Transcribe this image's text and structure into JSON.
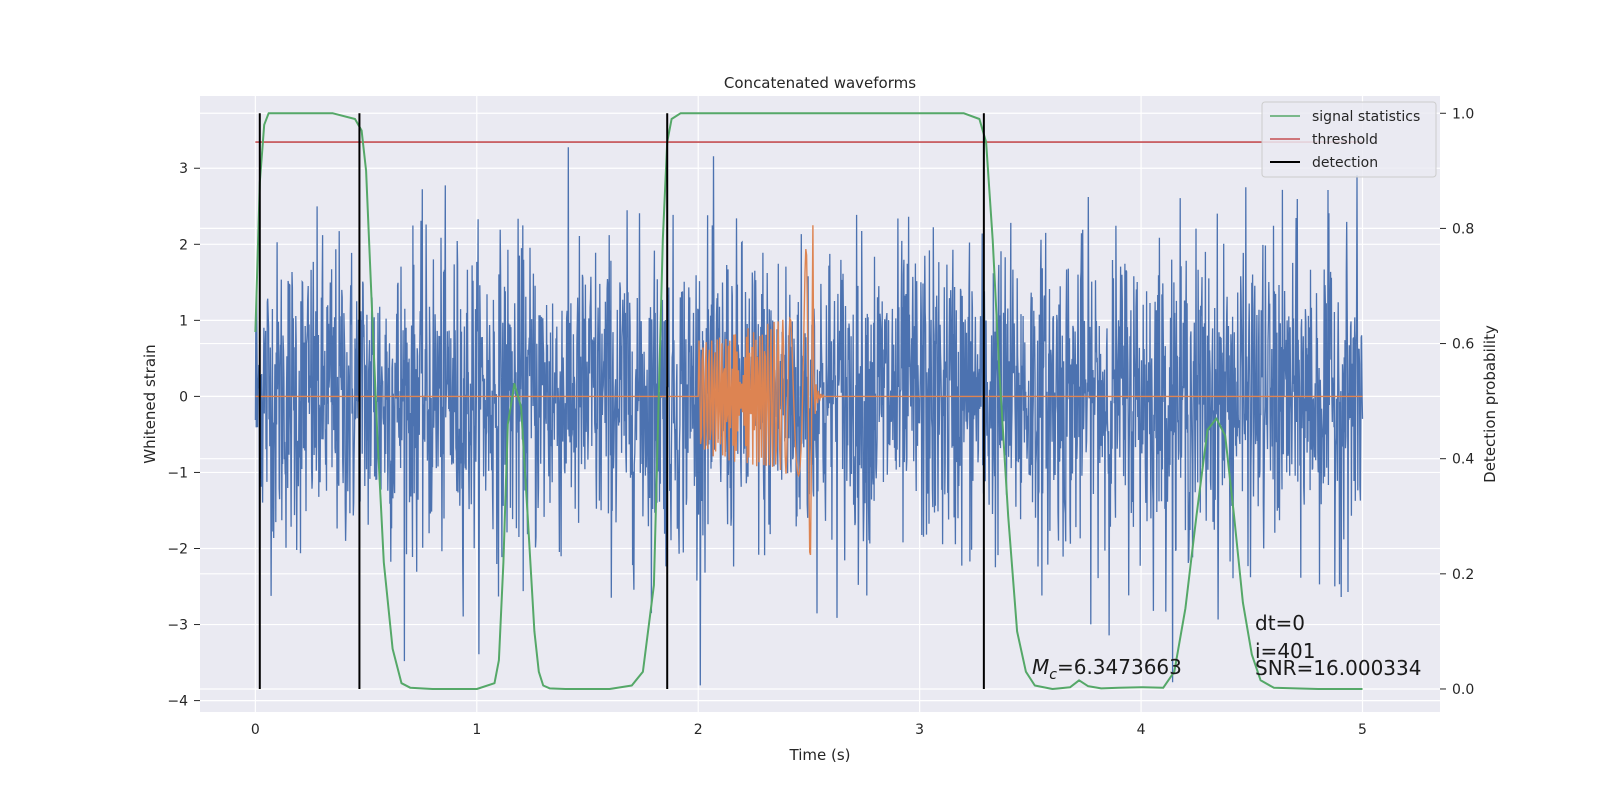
{
  "chart_data": {
    "type": "line",
    "title": "Concatenated waveforms",
    "xlabel": "Time (s)",
    "ylabel": "Whitened strain",
    "y2label": "Detection probability",
    "xlim": [
      -0.25,
      5.35
    ],
    "ylim": [
      -4.15,
      3.95
    ],
    "y2lim": [
      -0.04,
      1.03
    ],
    "grid": true,
    "legend_position": "top-right",
    "x_ticks": [
      "0",
      "1",
      "2",
      "3",
      "4",
      "5"
    ],
    "y_ticks": [
      "−4",
      "−3",
      "−2",
      "−1",
      "0",
      "1",
      "2",
      "3"
    ],
    "y2_ticks": [
      "0.0",
      "0.2",
      "0.4",
      "0.6",
      "0.8",
      "1.0"
    ],
    "legend": [
      "signal statistics",
      "threshold",
      "detection"
    ],
    "series": [
      {
        "name": "signal statistics",
        "axis": "right",
        "color": "#55a868",
        "x": [
          0.0,
          0.02,
          0.04,
          0.06,
          0.1,
          0.2,
          0.35,
          0.45,
          0.48,
          0.5,
          0.52,
          0.55,
          0.58,
          0.62,
          0.66,
          0.7,
          0.8,
          1.0,
          1.08,
          1.1,
          1.12,
          1.14,
          1.17,
          1.2,
          1.23,
          1.26,
          1.28,
          1.3,
          1.33,
          1.4,
          1.6,
          1.7,
          1.75,
          1.8,
          1.84,
          1.86,
          1.88,
          1.92,
          2.0,
          2.5,
          3.2,
          3.27,
          3.3,
          3.33,
          3.36,
          3.4,
          3.44,
          3.48,
          3.52,
          3.6,
          3.68,
          3.72,
          3.76,
          3.82,
          3.9,
          4.0,
          4.1,
          4.15,
          4.2,
          4.25,
          4.3,
          4.34,
          4.38,
          4.42,
          4.46,
          4.5,
          4.54,
          4.6,
          4.8,
          5.0
        ],
        "y": [
          0.62,
          0.88,
          0.98,
          1.0,
          1.0,
          1.0,
          1.0,
          0.99,
          0.97,
          0.9,
          0.72,
          0.45,
          0.22,
          0.07,
          0.01,
          0.002,
          0.0,
          0.0,
          0.01,
          0.05,
          0.22,
          0.46,
          0.53,
          0.49,
          0.3,
          0.1,
          0.03,
          0.006,
          0.001,
          0.0,
          0.0,
          0.006,
          0.03,
          0.18,
          0.78,
          0.95,
          0.99,
          1.0,
          1.0,
          1.0,
          1.0,
          0.99,
          0.95,
          0.78,
          0.55,
          0.3,
          0.1,
          0.03,
          0.006,
          0.0,
          0.003,
          0.015,
          0.005,
          0.001,
          0.002,
          0.003,
          0.002,
          0.03,
          0.14,
          0.3,
          0.45,
          0.47,
          0.44,
          0.3,
          0.15,
          0.06,
          0.015,
          0.002,
          0.0,
          0.0
        ]
      },
      {
        "name": "threshold",
        "axis": "right",
        "color": "#c44e52",
        "x": [
          0.0,
          5.0
        ],
        "y": [
          0.95,
          0.95
        ]
      },
      {
        "name": "detection",
        "axis": "right",
        "color": "#000000",
        "x": [
          0.02,
          0.47,
          1.86,
          3.29
        ],
        "y": [
          1.0,
          1.0,
          1.0,
          1.0
        ]
      },
      {
        "name": "",
        "description_hidden": "",
        "axis": "left",
        "color": "#4c72b0",
        "x_range": [
          0.0,
          5.0
        ],
        "y_range": [
          -3.8,
          3.6
        ]
      },
      {
        "name": "",
        "axis": "left",
        "color": "#dd8452",
        "x_range": [
          0.0,
          5.0
        ],
        "burst_x_range": [
          2.0,
          2.52
        ],
        "burst_y_range": [
          -2.3,
          2.4
        ]
      }
    ],
    "annotations": {
      "mc": "=6.3473663",
      "mc_symbol": "M",
      "mc_sub": "c",
      "dt": "dt=0",
      "i": "i=401",
      "snr": "SNR=16.000334"
    },
    "colors": {
      "axes_bg": "#eaeaf2",
      "grid": "#ffffff",
      "noise": "#4c72b0",
      "template": "#dd8452"
    }
  }
}
